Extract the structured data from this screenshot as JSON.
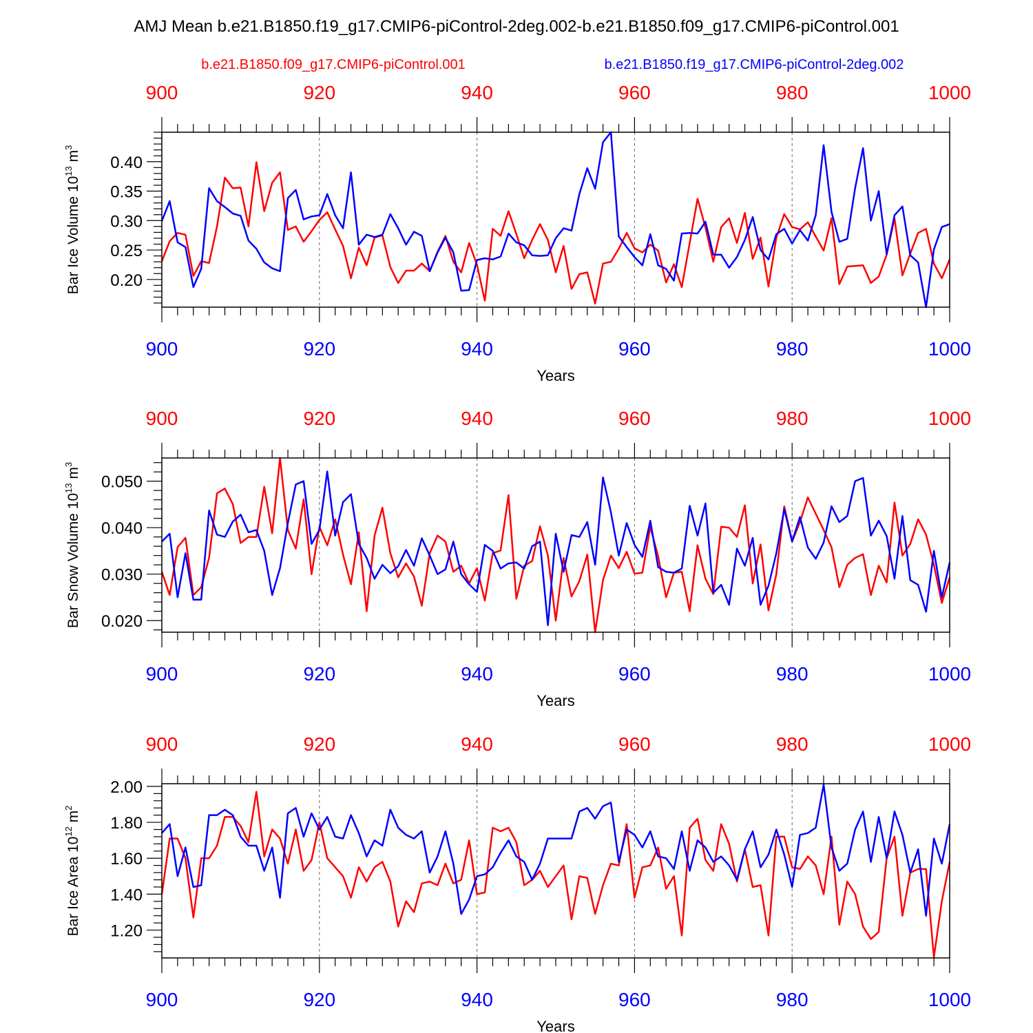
{
  "title": "AMJ Mean b.e21.B1850.f19_g17.CMIP6-piControl-2deg.002-b.e21.B1850.f09_g17.CMIP6-piControl.001",
  "legend": {
    "red_label": "b.e21.B1850.f09_g17.CMIP6-piControl.001",
    "blue_label": "b.e21.B1850.f19_g17.CMIP6-piControl-2deg.002"
  },
  "colors": {
    "red": "#ff0000",
    "blue": "#0000ff",
    "axis": "#000000",
    "grid": "#666666"
  },
  "chart_data": [
    {
      "type": "line",
      "ylabel": {
        "main": "Bar Ice Volume 10",
        "exp": "13",
        "unit": " m",
        "unit_exp": "3"
      },
      "xlabel": "Years",
      "xlim": [
        900,
        1000
      ],
      "ylim": [
        0.153,
        0.45
      ],
      "xticks": [
        "900",
        "920",
        "940",
        "960",
        "980",
        "1000"
      ],
      "yticks": [
        {
          "value": 0.2,
          "label": "0.20"
        },
        {
          "value": 0.25,
          "label": "0.25"
        },
        {
          "value": 0.3,
          "label": "0.30"
        },
        {
          "value": 0.35,
          "label": "0.35"
        },
        {
          "value": 0.4,
          "label": "0.40"
        }
      ],
      "x_start": 900,
      "series": [
        {
          "name": "b.e21.B1850.f09_g17.CMIP6-piControl.001",
          "color": "#ff0000",
          "values": [
            0.231,
            0.265,
            0.279,
            0.276,
            0.206,
            0.231,
            0.228,
            0.29,
            0.373,
            0.355,
            0.356,
            0.29,
            0.399,
            0.316,
            0.364,
            0.382,
            0.284,
            0.29,
            0.264,
            0.282,
            0.301,
            0.314,
            0.285,
            0.257,
            0.202,
            0.254,
            0.224,
            0.271,
            0.275,
            0.221,
            0.194,
            0.215,
            0.215,
            0.227,
            0.214,
            0.247,
            0.274,
            0.23,
            0.212,
            0.262,
            0.225,
            0.164,
            0.286,
            0.274,
            0.316,
            0.277,
            0.236,
            0.267,
            0.294,
            0.267,
            0.212,
            0.257,
            0.184,
            0.209,
            0.212,
            0.159,
            0.227,
            0.23,
            0.252,
            0.279,
            0.253,
            0.246,
            0.259,
            0.249,
            0.195,
            0.226,
            0.187,
            0.262,
            0.337,
            0.288,
            0.23,
            0.289,
            0.304,
            0.262,
            0.313,
            0.235,
            0.271,
            0.188,
            0.271,
            0.311,
            0.289,
            0.285,
            0.297,
            0.273,
            0.249,
            0.304,
            0.192,
            0.222,
            0.223,
            0.224,
            0.194,
            0.205,
            0.242,
            0.304,
            0.207,
            0.244,
            0.279,
            0.286,
            0.227,
            0.202,
            0.234
          ]
        },
        {
          "name": "b.e21.B1850.f19_g17.CMIP6-piControl-2deg.002",
          "color": "#0000ff",
          "values": [
            0.299,
            0.333,
            0.263,
            0.255,
            0.187,
            0.218,
            0.355,
            0.333,
            0.323,
            0.312,
            0.308,
            0.266,
            0.252,
            0.229,
            0.219,
            0.214,
            0.338,
            0.352,
            0.302,
            0.307,
            0.309,
            0.345,
            0.309,
            0.287,
            0.382,
            0.259,
            0.276,
            0.272,
            0.276,
            0.311,
            0.287,
            0.259,
            0.281,
            0.274,
            0.214,
            0.246,
            0.271,
            0.246,
            0.181,
            0.182,
            0.233,
            0.236,
            0.234,
            0.239,
            0.278,
            0.263,
            0.258,
            0.241,
            0.24,
            0.241,
            0.27,
            0.287,
            0.283,
            0.345,
            0.389,
            0.354,
            0.433,
            0.45,
            0.273,
            0.255,
            0.238,
            0.224,
            0.277,
            0.224,
            0.218,
            0.198,
            0.278,
            0.279,
            0.278,
            0.298,
            0.242,
            0.242,
            0.22,
            0.238,
            0.267,
            0.306,
            0.25,
            0.234,
            0.277,
            0.286,
            0.261,
            0.284,
            0.266,
            0.309,
            0.428,
            0.315,
            0.264,
            0.269,
            0.355,
            0.423,
            0.3,
            0.35,
            0.243,
            0.309,
            0.324,
            0.241,
            0.229,
            0.153,
            0.251,
            0.289,
            0.294
          ]
        }
      ]
    },
    {
      "type": "line",
      "ylabel": {
        "main": "Bar Snow Volume 10",
        "exp": "13",
        "unit": " m",
        "unit_exp": "3"
      },
      "xlabel": "Years",
      "xlim": [
        900,
        1000
      ],
      "ylim": [
        0.0175,
        0.055
      ],
      "xticks": [
        "900",
        "920",
        "940",
        "960",
        "980",
        "1000"
      ],
      "yticks": [
        {
          "value": 0.02,
          "label": "0.020"
        },
        {
          "value": 0.03,
          "label": "0.030"
        },
        {
          "value": 0.04,
          "label": "0.040"
        },
        {
          "value": 0.05,
          "label": "0.050"
        }
      ],
      "x_start": 900,
      "series": [
        {
          "name": "b.e21.B1850.f09_g17.CMIP6-piControl.001",
          "color": "#ff0000",
          "values": [
            0.0305,
            0.0255,
            0.0358,
            0.0378,
            0.0255,
            0.0272,
            0.0335,
            0.0474,
            0.0484,
            0.0451,
            0.0367,
            0.038,
            0.038,
            0.0488,
            0.0388,
            0.055,
            0.0395,
            0.0355,
            0.0461,
            0.03,
            0.0402,
            0.0362,
            0.0418,
            0.0342,
            0.0278,
            0.039,
            0.022,
            0.0383,
            0.0443,
            0.0345,
            0.0293,
            0.0323,
            0.0295,
            0.0232,
            0.0345,
            0.0383,
            0.037,
            0.0305,
            0.0318,
            0.028,
            0.0313,
            0.0243,
            0.0345,
            0.0351,
            0.047,
            0.0247,
            0.0318,
            0.0328,
            0.0403,
            0.034,
            0.02,
            0.0335,
            0.0252,
            0.0285,
            0.0342,
            0.0175,
            0.0287,
            0.034,
            0.0313,
            0.0348,
            0.0301,
            0.0303,
            0.0402,
            0.0338,
            0.025,
            0.0303,
            0.0305,
            0.022,
            0.0362,
            0.029,
            0.0257,
            0.0402,
            0.04,
            0.038,
            0.0448,
            0.028,
            0.0364,
            0.0222,
            0.03,
            0.0446,
            0.037,
            0.0412,
            0.0465,
            0.043,
            0.0395,
            0.0358,
            0.0272,
            0.032,
            0.0335,
            0.0343,
            0.0255,
            0.0318,
            0.0282,
            0.0454,
            0.034,
            0.0365,
            0.0418,
            0.0385,
            0.032,
            0.0238,
            0.0293
          ]
        },
        {
          "name": "b.e21.B1850.f19_g17.CMIP6-piControl-2deg.002",
          "color": "#0000ff",
          "values": [
            0.037,
            0.0387,
            0.025,
            0.0345,
            0.0245,
            0.0245,
            0.0437,
            0.0385,
            0.038,
            0.0413,
            0.0428,
            0.039,
            0.0395,
            0.035,
            0.0255,
            0.0313,
            0.041,
            0.0493,
            0.05,
            0.0365,
            0.0395,
            0.0521,
            0.0383,
            0.0455,
            0.0472,
            0.0365,
            0.0335,
            0.029,
            0.032,
            0.0302,
            0.0317,
            0.0352,
            0.0318,
            0.0377,
            0.034,
            0.03,
            0.031,
            0.037,
            0.03,
            0.0278,
            0.0262,
            0.0363,
            0.035,
            0.0312,
            0.0323,
            0.0325,
            0.0312,
            0.036,
            0.037,
            0.019,
            0.0387,
            0.0305,
            0.0384,
            0.038,
            0.0412,
            0.032,
            0.0508,
            0.0433,
            0.034,
            0.041,
            0.0363,
            0.0337,
            0.0415,
            0.0315,
            0.0305,
            0.0303,
            0.0312,
            0.0447,
            0.0383,
            0.0452,
            0.026,
            0.0277,
            0.0234,
            0.0355,
            0.0318,
            0.0378,
            0.0234,
            0.0275,
            0.0345,
            0.044,
            0.037,
            0.0423,
            0.0357,
            0.0333,
            0.0368,
            0.0446,
            0.0412,
            0.0425,
            0.05,
            0.0507,
            0.0383,
            0.0415,
            0.0382,
            0.029,
            0.0425,
            0.0287,
            0.0277,
            0.0219,
            0.035,
            0.025,
            0.0325
          ]
        }
      ]
    },
    {
      "type": "line",
      "ylabel": {
        "main": "Bar Ice Area 10",
        "exp": "12",
        "unit": " m",
        "unit_exp": "2"
      },
      "xlabel": "Years",
      "xlim": [
        900,
        1000
      ],
      "ylim": [
        1.045,
        2.015
      ],
      "xticks": [
        "900",
        "920",
        "940",
        "960",
        "980",
        "1000"
      ],
      "yticks": [
        {
          "value": 1.2,
          "label": "1.20"
        },
        {
          "value": 1.4,
          "label": "1.40"
        },
        {
          "value": 1.6,
          "label": "1.60"
        },
        {
          "value": 1.8,
          "label": "1.80"
        },
        {
          "value": 2.0,
          "label": "2.00"
        }
      ],
      "x_start": 900,
      "series": [
        {
          "name": "b.e21.B1850.f09_g17.CMIP6-piControl.001",
          "color": "#ff0000",
          "values": [
            1.4,
            1.71,
            1.71,
            1.6,
            1.27,
            1.6,
            1.6,
            1.67,
            1.83,
            1.83,
            1.78,
            1.69,
            1.97,
            1.61,
            1.76,
            1.71,
            1.57,
            1.76,
            1.53,
            1.59,
            1.8,
            1.6,
            1.55,
            1.5,
            1.38,
            1.55,
            1.47,
            1.55,
            1.58,
            1.47,
            1.22,
            1.36,
            1.3,
            1.46,
            1.47,
            1.45,
            1.57,
            1.46,
            1.48,
            1.7,
            1.4,
            1.41,
            1.77,
            1.75,
            1.77,
            1.69,
            1.45,
            1.48,
            1.53,
            1.44,
            1.5,
            1.56,
            1.26,
            1.5,
            1.49,
            1.29,
            1.45,
            1.57,
            1.56,
            1.79,
            1.38,
            1.55,
            1.56,
            1.66,
            1.43,
            1.5,
            1.17,
            1.77,
            1.82,
            1.59,
            1.53,
            1.79,
            1.68,
            1.47,
            1.65,
            1.44,
            1.45,
            1.17,
            1.72,
            1.72,
            1.55,
            1.54,
            1.61,
            1.56,
            1.4,
            1.72,
            1.23,
            1.47,
            1.4,
            1.22,
            1.15,
            1.19,
            1.6,
            1.72,
            1.28,
            1.52,
            1.54,
            1.54,
            1.05,
            1.36,
            1.58
          ]
        },
        {
          "name": "b.e21.B1850.f19_g17.CMIP6-piControl-2deg.002",
          "color": "#0000ff",
          "values": [
            1.74,
            1.79,
            1.5,
            1.66,
            1.44,
            1.45,
            1.84,
            1.84,
            1.87,
            1.84,
            1.72,
            1.67,
            1.67,
            1.53,
            1.66,
            1.38,
            1.85,
            1.88,
            1.72,
            1.85,
            1.76,
            1.83,
            1.72,
            1.71,
            1.84,
            1.74,
            1.61,
            1.7,
            1.67,
            1.87,
            1.77,
            1.73,
            1.71,
            1.75,
            1.52,
            1.61,
            1.75,
            1.57,
            1.29,
            1.37,
            1.5,
            1.51,
            1.55,
            1.63,
            1.7,
            1.61,
            1.58,
            1.48,
            1.57,
            1.71,
            1.71,
            1.71,
            1.71,
            1.86,
            1.88,
            1.82,
            1.89,
            1.91,
            1.58,
            1.76,
            1.73,
            1.66,
            1.75,
            1.61,
            1.6,
            1.54,
            1.75,
            1.53,
            1.7,
            1.66,
            1.58,
            1.61,
            1.56,
            1.48,
            1.65,
            1.75,
            1.55,
            1.62,
            1.76,
            1.62,
            1.44,
            1.73,
            1.74,
            1.77,
            2.01,
            1.66,
            1.53,
            1.57,
            1.76,
            1.86,
            1.58,
            1.83,
            1.6,
            1.86,
            1.73,
            1.52,
            1.65,
            1.28,
            1.71,
            1.57,
            1.79
          ]
        }
      ]
    }
  ]
}
